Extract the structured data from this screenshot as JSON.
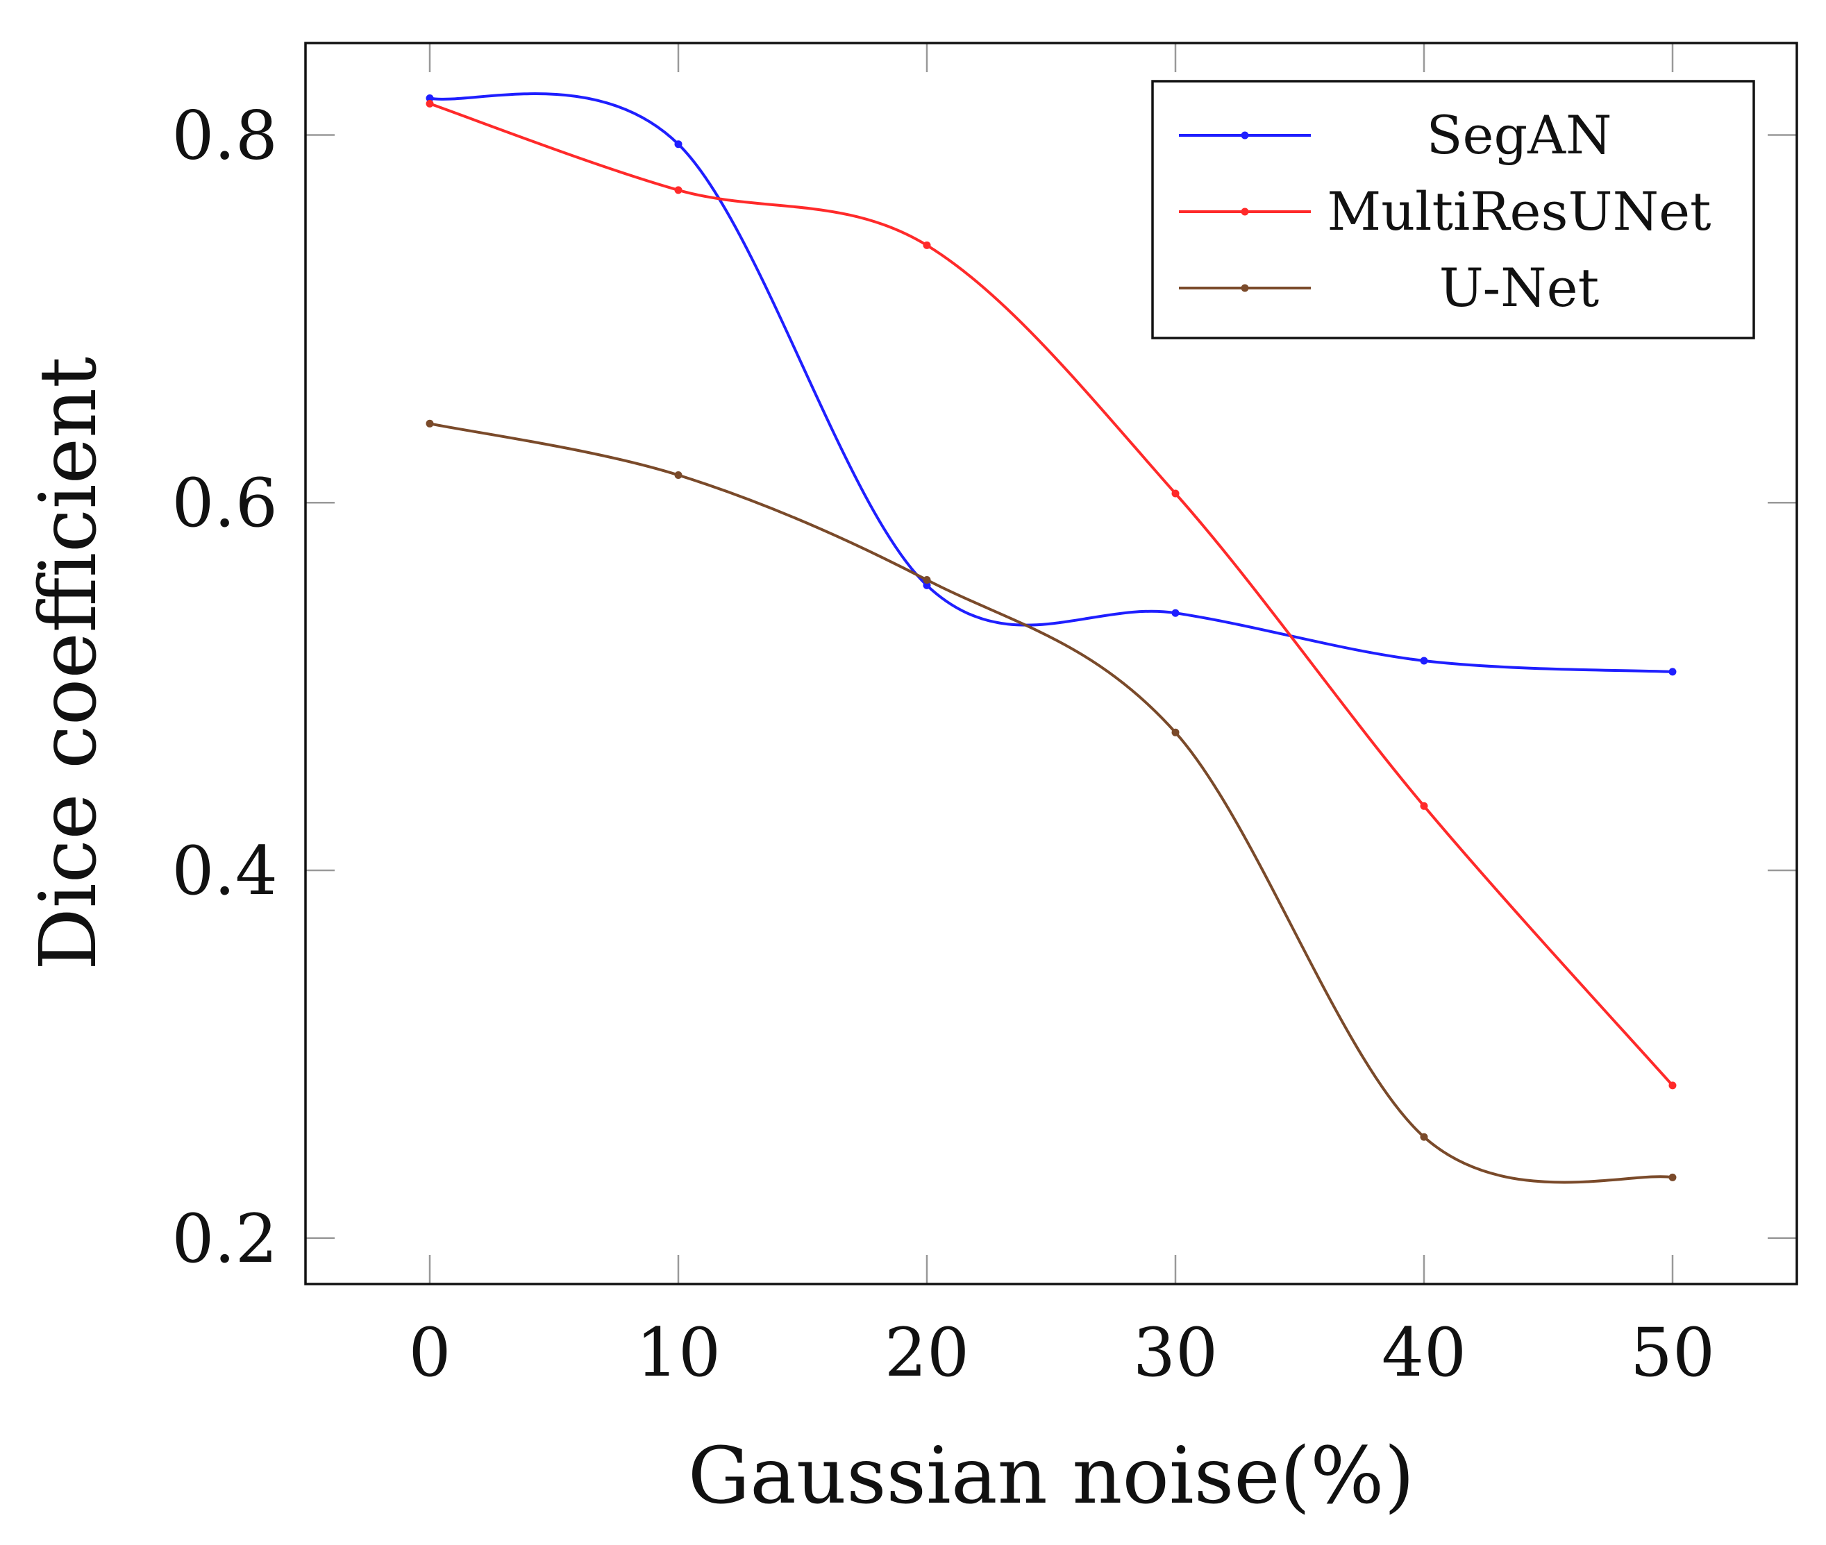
{
  "chart_data": {
    "type": "line",
    "title": "",
    "xlabel": "Gaussian noise(%)",
    "ylabel": "Dice coefficient",
    "xlim": [
      -5,
      55
    ],
    "ylim": [
      0.175,
      0.85
    ],
    "x": [
      0,
      10,
      20,
      30,
      40,
      50
    ],
    "xticks": [
      0,
      10,
      20,
      30,
      40,
      50
    ],
    "xtick_labels": [
      "0",
      "10",
      "20",
      "30",
      "40",
      "50"
    ],
    "yticks": [
      0.2,
      0.4,
      0.6,
      0.8
    ],
    "ytick_labels": [
      "0.2",
      "0.4",
      "0.6",
      "0.8"
    ],
    "grid": false,
    "legend_position": "top-right",
    "series": [
      {
        "name": "SegAN",
        "color": "#1f1fff",
        "values": [
          0.82,
          0.795,
          0.555,
          0.54,
          0.514,
          0.508
        ]
      },
      {
        "name": "MultiResUNet",
        "color": "#ff2a2a",
        "values": [
          0.817,
          0.77,
          0.74,
          0.605,
          0.435,
          0.283
        ]
      },
      {
        "name": "U-Net",
        "color": "#7a4a2a",
        "values": [
          0.643,
          0.615,
          0.558,
          0.475,
          0.255,
          0.233
        ]
      }
    ]
  }
}
